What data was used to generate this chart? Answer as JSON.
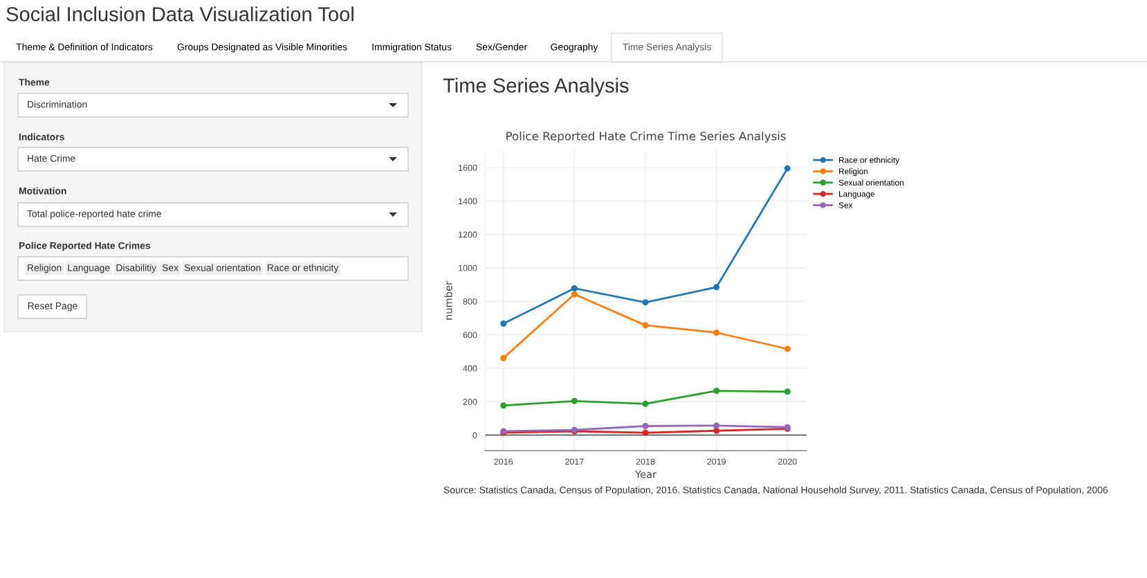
{
  "chart_data": [
    {
      "type": "other",
      "title": "Social Inclusion Data Visualization Tool",
      "annotations": [
        "Theme & Definition of Indicators",
        "Groups Designated as Visible Minorities",
        "Immigration Status",
        "Sex/Gender",
        "Geography",
        "Time Series Analysis",
        "Theme",
        "Discrimination",
        "Indicators",
        "Hate Crime",
        "Motivation",
        "Total police-reported hate crime",
        "Police Reported Hate Crimes",
        "Religion",
        "Language",
        "Disabilitiy",
        "Sex",
        "Sexual orientation",
        "Race or ethnicity",
        "Reset Page",
        "Time Series Analysis"
      ]
    },
    {
      "type": "line",
      "title": "Police Reported Hate Crime Time Series Analysis",
      "xlabel": "Year",
      "ylabel": "number",
      "x": [
        2016,
        2017,
        2018,
        2019,
        2020
      ],
      "xlim": [
        2015.74,
        2020.27
      ],
      "xticks": [
        2016,
        2017,
        2018,
        2019,
        2020
      ],
      "ylim": [
        -93,
        1700
      ],
      "yticks": [
        0,
        200,
        400,
        600,
        800,
        1000,
        1200,
        1400,
        1600
      ],
      "grid": true,
      "legend": "top right",
      "marker": "circle",
      "line_style": "solid",
      "ref_lines": [
        {
          "axis": "y",
          "value": 0,
          "color": "#444444"
        }
      ],
      "series": [
        {
          "name": "Race or ethnicity",
          "color": "#1f77b4",
          "values": [
            667,
            878,
            794,
            885,
            1595
          ]
        },
        {
          "name": "Religion",
          "color": "#ff7f0e",
          "values": [
            461,
            843,
            657,
            613,
            516
          ]
        },
        {
          "name": "Sexual orientation",
          "color": "#2ca02c",
          "values": [
            177,
            204,
            187,
            265,
            260
          ]
        },
        {
          "name": "Language",
          "color": "#d62728",
          "values": [
            14,
            23,
            14,
            26,
            38
          ]
        },
        {
          "name": "Sex",
          "color": "#9467bd",
          "values": [
            23,
            31,
            54,
            57,
            47
          ]
        }
      ],
      "annotations": [
        "Source: Statistics Canada, Census of Population, 2016. Statistics Canada, National Household Survey, 2011. Statistics Canada, Census of Population, 2006"
      ]
    }
  ]
}
